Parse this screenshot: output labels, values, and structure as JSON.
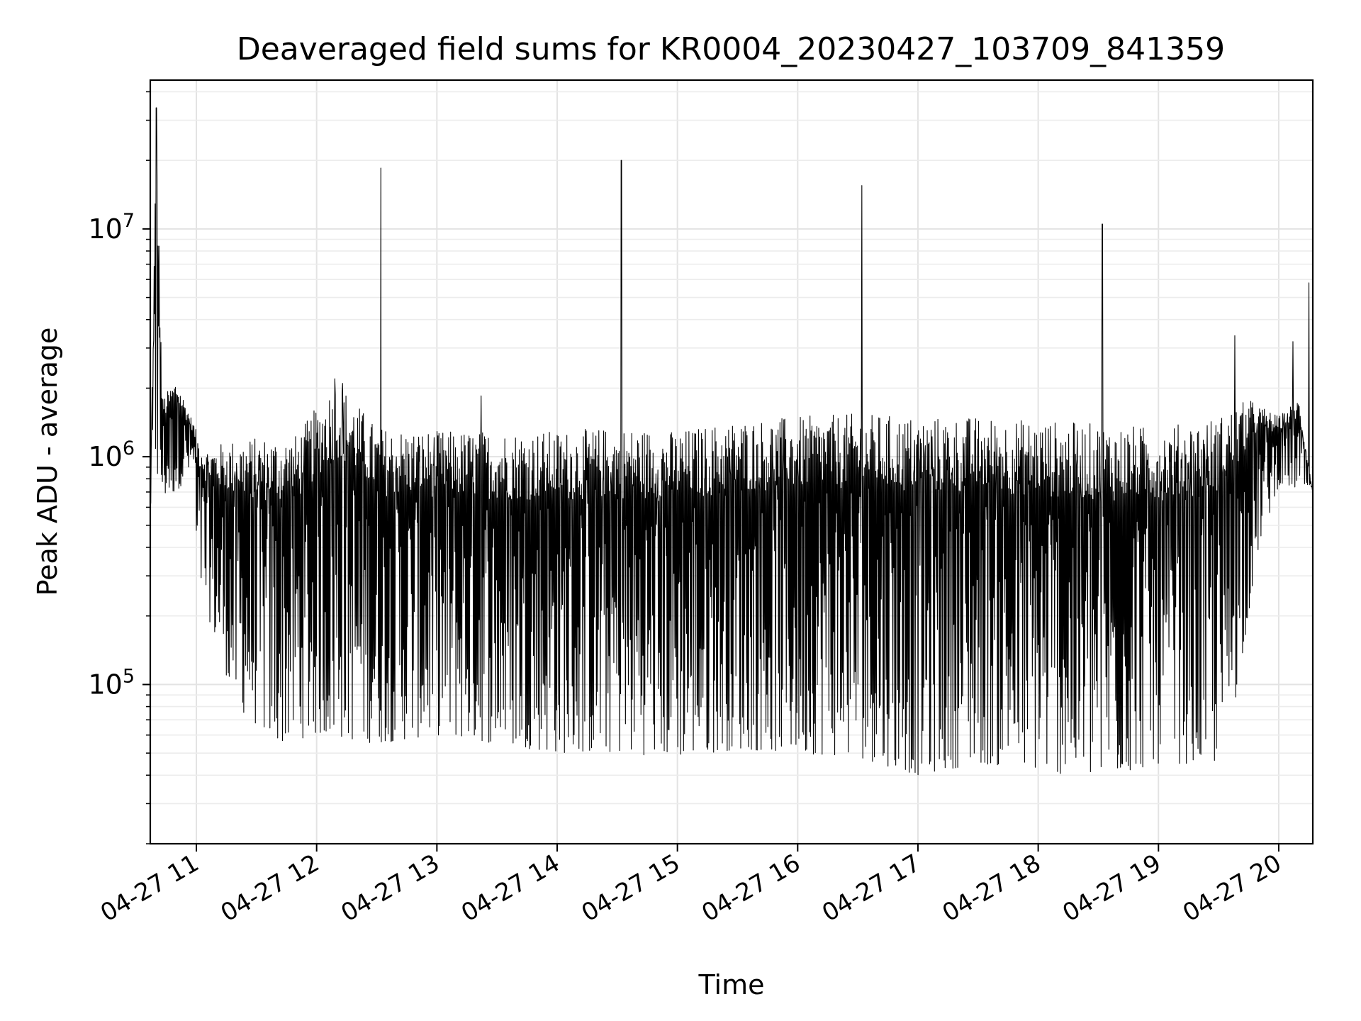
{
  "chart_data": {
    "type": "line",
    "title": "Deaveraged field sums for KR0004_20230427_103709_841359",
    "xlabel": "Time",
    "ylabel": "Peak ADU - average",
    "y_scale": "log",
    "x_axis": "datetime",
    "xlim": [
      "2023-04-27 10:37",
      "2023-04-27 20:17"
    ],
    "ylim": [
      20000,
      45000000
    ],
    "x_ticks": [
      "04-27 11",
      "04-27 12",
      "04-27 13",
      "04-27 14",
      "04-27 15",
      "04-27 16",
      "04-27 17",
      "04-27 18",
      "04-27 19",
      "04-27 20"
    ],
    "y_ticks": [
      {
        "value": 100000,
        "mantissa": "10",
        "exponent": "5"
      },
      {
        "value": 1000000,
        "mantissa": "10",
        "exponent": "6"
      },
      {
        "value": 10000000,
        "mantissa": "10",
        "exponent": "7"
      }
    ],
    "grid": true,
    "line_color": "#000000",
    "series": [
      {
        "note_values": "Dense oscillating signal; upper envelope and lower envelope points in data units",
        "upper_envelope": [
          {
            "x": "10:37",
            "y": 600000
          },
          {
            "x": "10:40",
            "y": 34000000
          },
          {
            "x": "10:43",
            "y": 1800000
          },
          {
            "x": "10:50",
            "y": 2200000
          },
          {
            "x": "11:00",
            "y": 1300000
          },
          {
            "x": "11:05",
            "y": 1100000
          },
          {
            "x": "11:20",
            "y": 1200000
          },
          {
            "x": "11:50",
            "y": 1250000
          },
          {
            "x": "12:10",
            "y": 2200000
          },
          {
            "x": "12:30",
            "y": 1350000
          },
          {
            "x": "13:00",
            "y": 1300000
          },
          {
            "x": "13:30",
            "y": 1300000
          },
          {
            "x": "14:00",
            "y": 1300000
          },
          {
            "x": "14:30",
            "y": 1350000
          },
          {
            "x": "15:00",
            "y": 1300000
          },
          {
            "x": "15:30",
            "y": 1450000
          },
          {
            "x": "16:00",
            "y": 1500000
          },
          {
            "x": "16:30",
            "y": 1550000
          },
          {
            "x": "17:00",
            "y": 1500000
          },
          {
            "x": "17:30",
            "y": 1500000
          },
          {
            "x": "18:00",
            "y": 1450000
          },
          {
            "x": "18:30",
            "y": 1400000
          },
          {
            "x": "19:00",
            "y": 1350000
          },
          {
            "x": "19:30",
            "y": 1500000
          },
          {
            "x": "19:45",
            "y": 1800000
          },
          {
            "x": "20:00",
            "y": 1500000
          },
          {
            "x": "20:10",
            "y": 1800000
          },
          {
            "x": "20:17",
            "y": 700000
          }
        ],
        "lower_envelope": [
          {
            "x": "10:37",
            "y": 600000
          },
          {
            "x": "10:50",
            "y": 700000
          },
          {
            "x": "10:59",
            "y": 900000
          },
          {
            "x": "11:00",
            "y": 300000
          },
          {
            "x": "11:10",
            "y": 150000
          },
          {
            "x": "11:20",
            "y": 80000
          },
          {
            "x": "11:40",
            "y": 55000
          },
          {
            "x": "12:00",
            "y": 60000
          },
          {
            "x": "12:30",
            "y": 55000
          },
          {
            "x": "13:00",
            "y": 60000
          },
          {
            "x": "13:30",
            "y": 55000
          },
          {
            "x": "14:00",
            "y": 50000
          },
          {
            "x": "14:30",
            "y": 50000
          },
          {
            "x": "15:00",
            "y": 48000
          },
          {
            "x": "15:30",
            "y": 52000
          },
          {
            "x": "16:00",
            "y": 50000
          },
          {
            "x": "16:30",
            "y": 48000
          },
          {
            "x": "17:00",
            "y": 40000
          },
          {
            "x": "17:30",
            "y": 45000
          },
          {
            "x": "18:00",
            "y": 42000
          },
          {
            "x": "18:30",
            "y": 38000
          },
          {
            "x": "19:00",
            "y": 45000
          },
          {
            "x": "19:30",
            "y": 45000
          },
          {
            "x": "19:38",
            "y": 80000
          },
          {
            "x": "19:50",
            "y": 400000
          },
          {
            "x": "20:00",
            "y": 750000
          },
          {
            "x": "20:17",
            "y": 700000
          }
        ],
        "spikes": [
          {
            "x": "10:40",
            "y": 34000000
          },
          {
            "x": "12:09",
            "y": 2200000
          },
          {
            "x": "12:13",
            "y": 2100000
          },
          {
            "x": "12:32",
            "y": 18500000
          },
          {
            "x": "13:22",
            "y": 1850000
          },
          {
            "x": "14:32",
            "y": 20000000
          },
          {
            "x": "16:32",
            "y": 15500000
          },
          {
            "x": "18:32",
            "y": 10500000
          },
          {
            "x": "19:38",
            "y": 3400000
          },
          {
            "x": "20:07",
            "y": 3200000
          },
          {
            "x": "20:15",
            "y": 5800000
          }
        ]
      }
    ]
  }
}
